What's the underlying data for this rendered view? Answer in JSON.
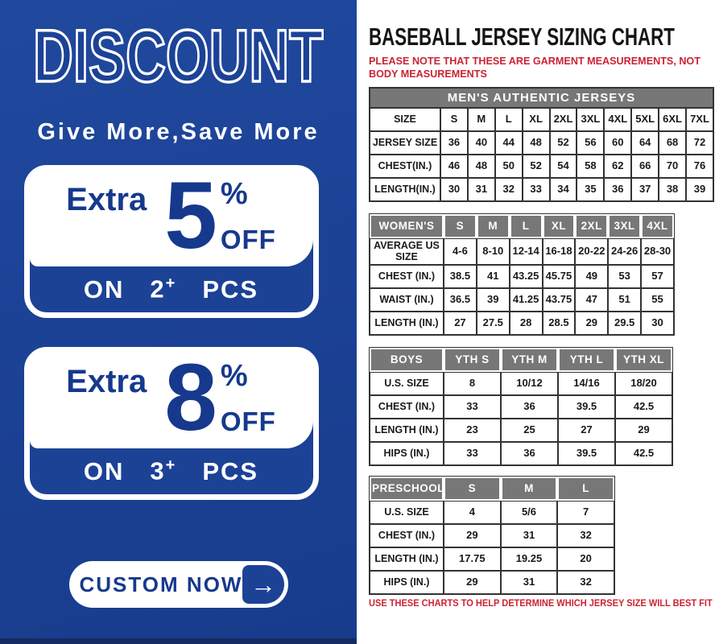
{
  "colors": {
    "panel_blue": "#1c4296",
    "accent_blue": "#16398d",
    "header_gray": "#777777",
    "note_red": "#cc2233",
    "border_dark": "#333333"
  },
  "left_panel": {
    "title": "DISCOUNT",
    "subtitle": "Give More,Save More",
    "offers": [
      {
        "extra_label": "Extra",
        "value": "5",
        "percent_sign": "%",
        "off_label": "OFF",
        "on_label": "ON",
        "quantity": "2",
        "plus_sign": "+",
        "pcs_label": "PCS"
      },
      {
        "extra_label": "Extra",
        "value": "8",
        "percent_sign": "%",
        "off_label": "OFF",
        "on_label": "ON",
        "quantity": "3",
        "plus_sign": "+",
        "pcs_label": "PCS"
      }
    ],
    "button": {
      "label": "CUSTOM NOW",
      "arrow": "→"
    }
  },
  "right_panel": {
    "title": "BASEBALL JERSEY SIZING CHART",
    "note_top": "PLEASE NOTE THAT THESE ARE GARMENT MEASUREMENTS, NOT BODY MEASUREMENTS",
    "note_bottom": "USE THESE CHARTS TO HELP DETERMINE WHICH JERSEY SIZE WILL BEST FIT YOU.",
    "tables": [
      {
        "id": "mens",
        "banner": "MEN'S AUTHENTIC JERSEYS",
        "header_row": null,
        "rows": [
          [
            "SIZE",
            "S",
            "M",
            "L",
            "XL",
            "2XL",
            "3XL",
            "4XL",
            "5XL",
            "6XL",
            "7XL"
          ],
          [
            "JERSEY SIZE",
            "36",
            "40",
            "44",
            "48",
            "52",
            "56",
            "60",
            "64",
            "68",
            "72"
          ],
          [
            "CHEST(IN.)",
            "46",
            "48",
            "50",
            "52",
            "54",
            "58",
            "62",
            "66",
            "70",
            "76"
          ],
          [
            "LENGTH(IN.)",
            "30",
            "31",
            "32",
            "33",
            "34",
            "35",
            "36",
            "37",
            "38",
            "39"
          ]
        ]
      },
      {
        "id": "womens",
        "banner": null,
        "header_row": [
          "WOMEN'S",
          "S",
          "M",
          "L",
          "XL",
          "2XL",
          "3XL",
          "4XL"
        ],
        "rows": [
          [
            "AVERAGE US SIZE",
            "4-6",
            "8-10",
            "12-14",
            "16-18",
            "20-22",
            "24-26",
            "28-30"
          ],
          [
            "CHEST (IN.)",
            "38.5",
            "41",
            "43.25",
            "45.75",
            "49",
            "53",
            "57"
          ],
          [
            "WAIST (IN.)",
            "36.5",
            "39",
            "41.25",
            "43.75",
            "47",
            "51",
            "55"
          ],
          [
            "LENGTH (IN.)",
            "27",
            "27.5",
            "28",
            "28.5",
            "29",
            "29.5",
            "30"
          ]
        ]
      },
      {
        "id": "boys",
        "banner": null,
        "header_row": [
          "BOYS",
          "YTH S",
          "YTH M",
          "YTH L",
          "YTH XL"
        ],
        "rows": [
          [
            "U.S. SIZE",
            "8",
            "10/12",
            "14/16",
            "18/20"
          ],
          [
            "CHEST (IN.)",
            "33",
            "36",
            "39.5",
            "42.5"
          ],
          [
            "LENGTH (IN.)",
            "23",
            "25",
            "27",
            "29"
          ],
          [
            "HIPS (IN.)",
            "33",
            "36",
            "39.5",
            "42.5"
          ]
        ]
      },
      {
        "id": "preschool",
        "banner": null,
        "header_row": [
          "PRESCHOOL",
          "S",
          "M",
          "L"
        ],
        "rows": [
          [
            "U.S. SIZE",
            "4",
            "5/6",
            "7"
          ],
          [
            "CHEST (IN.)",
            "29",
            "31",
            "32"
          ],
          [
            "LENGTH (IN.)",
            "17.75",
            "19.25",
            "20"
          ],
          [
            "HIPS (IN.)",
            "29",
            "31",
            "32"
          ]
        ]
      }
    ]
  }
}
